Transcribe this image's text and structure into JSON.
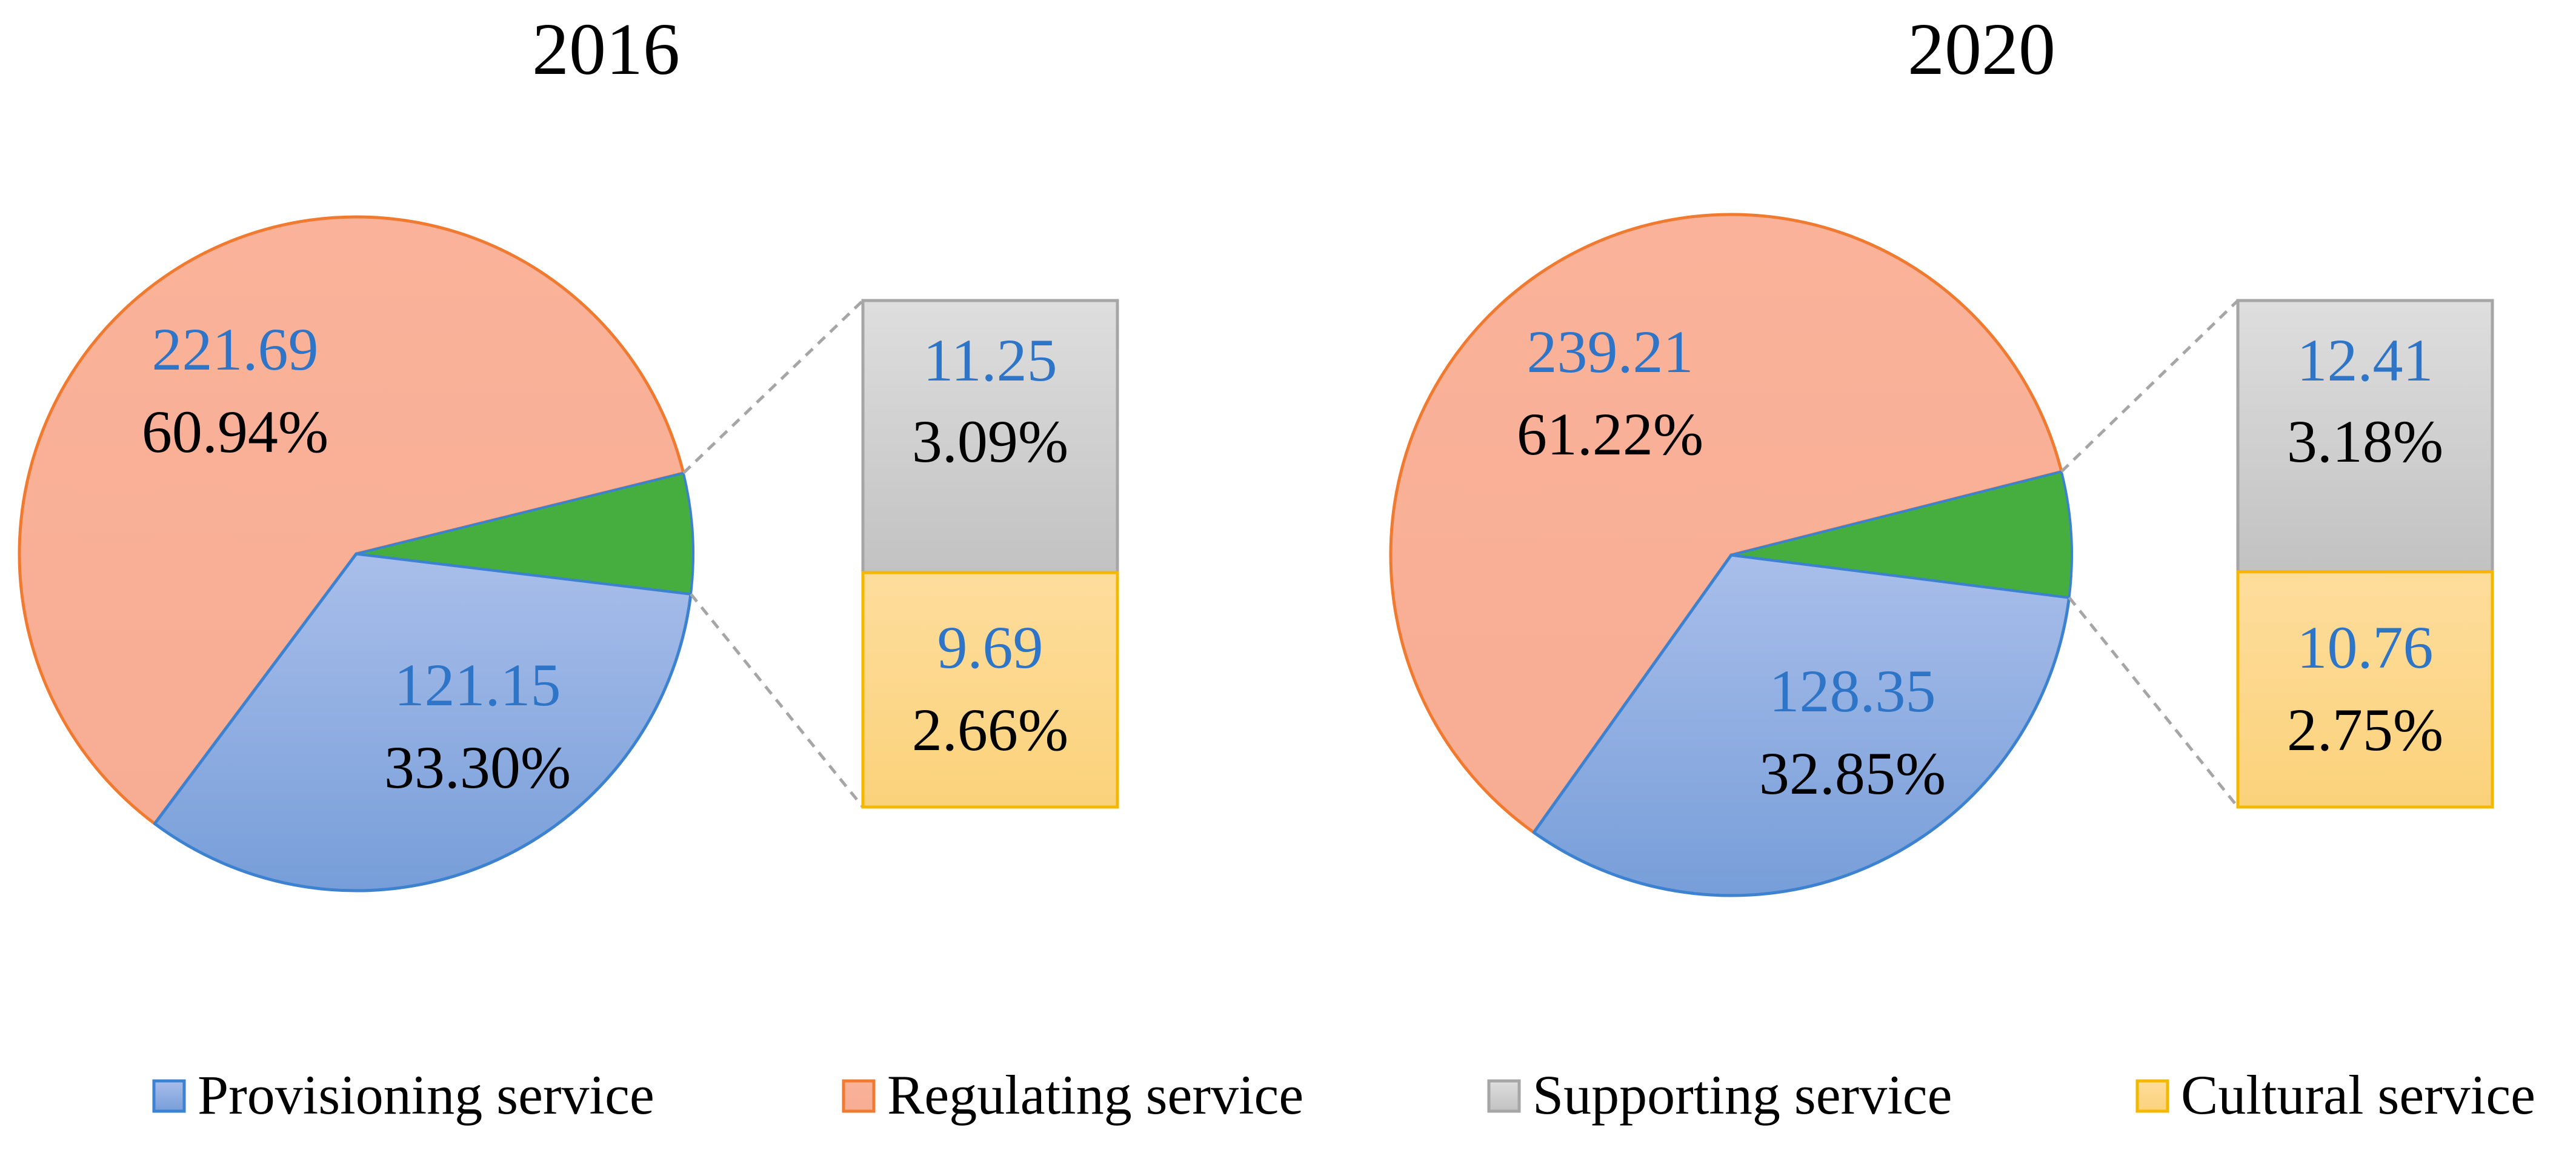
{
  "colors": {
    "provisioning_top": "#A9BEEA",
    "provisioning_bottom": "#779ED9",
    "provisioning_stroke": "#3C82D0",
    "regulating_top": "#FAB29A",
    "regulating_bottom": "#F7AD93",
    "regulating_stroke": "#F07A30",
    "supporting_top": "#DEDEDE",
    "supporting_bottom": "#C2C2C2",
    "supporting_stroke": "#A6A6A6",
    "cultural_top": "#FEDD9C",
    "cultural_bottom": "#FBD27B",
    "cultural_stroke": "#F5B800",
    "other_wedge": "#46AE3E",
    "value_label": "#2E75C7",
    "connector": "#A6A6A6"
  },
  "legend": [
    {
      "key": "provisioning",
      "label": "Provisioning service"
    },
    {
      "key": "regulating",
      "label": "Regulating service"
    },
    {
      "key": "supporting",
      "label": "Supporting service"
    },
    {
      "key": "cultural",
      "label": "Cultural service"
    }
  ],
  "chart_data": [
    {
      "type": "pie",
      "subtype": "pie-of-pie (bar breakout)",
      "title": "2016",
      "slices": [
        {
          "key": "provisioning",
          "name": "Provisioning service",
          "value": 121.15,
          "value_label": "121.15",
          "percent_label": "33.30%"
        },
        {
          "key": "regulating",
          "name": "Regulating service",
          "value": 221.69,
          "value_label": "221.69",
          "percent_label": "60.94%"
        },
        {
          "key": "supporting",
          "name": "Supporting service",
          "value": 11.25,
          "value_label": "11.25",
          "percent_label": "3.09%"
        },
        {
          "key": "cultural",
          "name": "Cultural service",
          "value": 9.69,
          "value_label": "9.69",
          "percent_label": "2.66%"
        }
      ],
      "breakout": [
        "supporting",
        "cultural"
      ]
    },
    {
      "type": "pie",
      "subtype": "pie-of-pie (bar breakout)",
      "title": "2020",
      "slices": [
        {
          "key": "provisioning",
          "name": "Provisioning service",
          "value": 128.35,
          "value_label": "128.35",
          "percent_label": "32.85%"
        },
        {
          "key": "regulating",
          "name": "Regulating service",
          "value": 239.21,
          "value_label": "239.21",
          "percent_label": "61.22%"
        },
        {
          "key": "supporting",
          "name": "Supporting service",
          "value": 12.41,
          "value_label": "12.41",
          "percent_label": "3.18%"
        },
        {
          "key": "cultural",
          "name": "Cultural service",
          "value": 10.76,
          "value_label": "10.76",
          "percent_label": "2.75%"
        }
      ],
      "breakout": [
        "supporting",
        "cultural"
      ]
    }
  ]
}
